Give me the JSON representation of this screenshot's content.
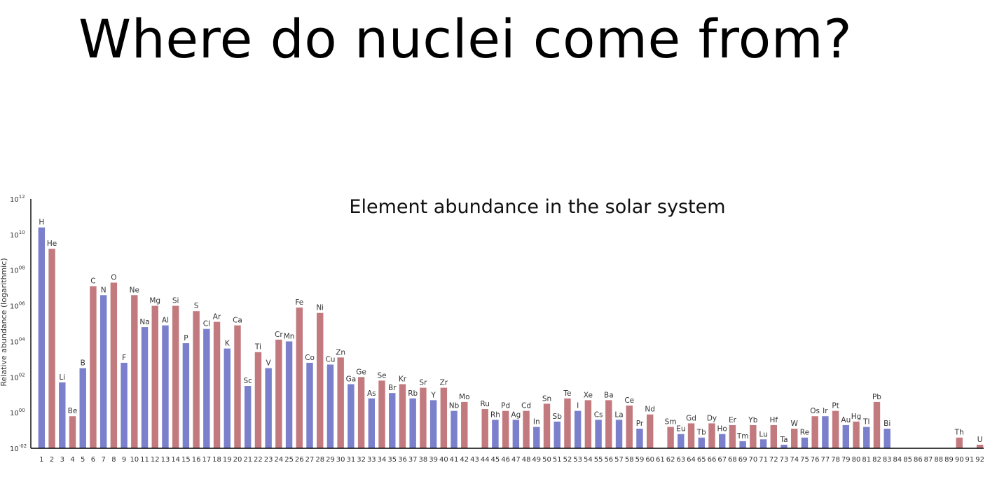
{
  "slide": {
    "title": "Where do nuclei come from?"
  },
  "colors": {
    "even_bar": "#c27a7f",
    "odd_bar": "#7b80cc",
    "axis": "#000000"
  },
  "chart_data": {
    "type": "bar",
    "title": "Element abundance in the solar system",
    "ylabel": "Relative abundance (logarithmic)",
    "xlabel": "",
    "y_scale": "log",
    "ylim": [
      0.01,
      1000000000000.0
    ],
    "y_ticks": [
      "10^12",
      "10^10",
      "10^08",
      "10^06",
      "10^04",
      "10^02",
      "10^00",
      "10^-02"
    ],
    "categories": [
      "1",
      "2",
      "3",
      "4",
      "5",
      "6",
      "7",
      "8",
      "9",
      "10",
      "11",
      "12",
      "13",
      "14",
      "15",
      "16",
      "17",
      "18",
      "19",
      "20",
      "21",
      "22",
      "23",
      "24",
      "25",
      "26",
      "27",
      "28",
      "29",
      "30",
      "31",
      "32",
      "33",
      "34",
      "35",
      "36",
      "37",
      "38",
      "39",
      "40",
      "41",
      "42",
      "43",
      "44",
      "45",
      "46",
      "47",
      "48",
      "49",
      "50",
      "51",
      "52",
      "53",
      "54",
      "55",
      "56",
      "57",
      "58",
      "59",
      "60",
      "61",
      "62",
      "63",
      "64",
      "65",
      "66",
      "67",
      "68",
      "69",
      "70",
      "71",
      "72",
      "73",
      "74",
      "75",
      "76",
      "77",
      "78",
      "79",
      "80",
      "81",
      "82",
      "83",
      "84",
      "85",
      "86",
      "87",
      "88",
      "89",
      "90",
      "91",
      "92"
    ],
    "labels": [
      "H",
      "He",
      "Li",
      "Be",
      "B",
      "C",
      "N",
      "O",
      "F",
      "Ne",
      "Na",
      "Mg",
      "Al",
      "Si",
      "P",
      "S",
      "Cl",
      "Ar",
      "K",
      "Ca",
      "Sc",
      "Ti",
      "V",
      "Cr",
      "Mn",
      "Fe",
      "Co",
      "Ni",
      "Cu",
      "Zn",
      "Ga",
      "Ge",
      "As",
      "Se",
      "Br",
      "Kr",
      "Rb",
      "Sr",
      "Y",
      "Zr",
      "Nb",
      "Mo",
      "",
      "Ru",
      "Rh",
      "Pd",
      "Ag",
      "Cd",
      "In",
      "Sn",
      "Sb",
      "Te",
      "I",
      "Xe",
      "Cs",
      "Ba",
      "La",
      "Ce",
      "Pr",
      "Nd",
      "",
      "Sm",
      "Eu",
      "Gd",
      "Tb",
      "Dy",
      "Ho",
      "Er",
      "Tm",
      "Yb",
      "Lu",
      "Hf",
      "Ta",
      "W",
      "Re",
      "Os",
      "Ir",
      "Pt",
      "Au",
      "Hg",
      "Tl",
      "Pb",
      "Bi",
      "",
      "",
      "",
      "",
      "",
      "",
      "Th",
      "",
      "U"
    ],
    "log10_values": [
      10.4,
      9.2,
      1.7,
      -0.2,
      2.5,
      7.1,
      6.6,
      7.3,
      2.8,
      6.6,
      4.8,
      6.0,
      4.9,
      6.0,
      3.9,
      5.7,
      4.7,
      5.1,
      3.6,
      4.9,
      1.5,
      3.4,
      2.5,
      4.1,
      4.0,
      5.9,
      2.8,
      5.6,
      2.7,
      3.1,
      1.6,
      2.0,
      0.8,
      1.8,
      1.1,
      1.6,
      0.8,
      1.4,
      0.7,
      1.4,
      0.1,
      0.6,
      null,
      0.2,
      -0.4,
      0.1,
      -0.4,
      0.1,
      -0.8,
      0.5,
      -0.5,
      0.8,
      0.1,
      0.7,
      -0.4,
      0.7,
      -0.4,
      0.4,
      -0.9,
      -0.1,
      null,
      -0.8,
      -1.2,
      -0.6,
      -1.4,
      -0.6,
      -1.2,
      -0.7,
      -1.6,
      -0.7,
      -1.5,
      -0.7,
      -1.8,
      -0.9,
      -1.4,
      -0.2,
      -0.2,
      0.1,
      -0.7,
      -0.5,
      -0.8,
      0.6,
      -0.9,
      null,
      null,
      null,
      null,
      null,
      null,
      -1.4,
      null,
      -1.8
    ]
  }
}
